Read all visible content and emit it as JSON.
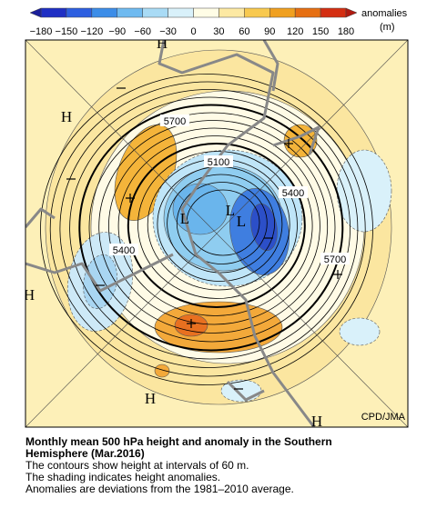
{
  "colorbar": {
    "ticks": [
      "−180",
      "−150",
      "−120",
      "−90",
      "−60",
      "−30",
      "0",
      "30",
      "60",
      "90",
      "120",
      "150",
      "180"
    ],
    "title": "anomalies",
    "unit": "(m)"
  },
  "map": {
    "highs": [
      "H",
      "H",
      "H",
      "H",
      "H"
    ],
    "lows": [
      "L",
      "L",
      "L"
    ],
    "contour_labels": [
      "5700",
      "5100",
      "5400",
      "5400",
      "5700"
    ],
    "credit": "CPD/JMA"
  },
  "caption": {
    "title_lines": [
      "Monthly mean 500 hPa height and anomaly in the Southern",
      "Hemisphere (Mar.2016)"
    ],
    "notes": [
      "The contours show height at intervals of 60 m.",
      "The shading indicates height anomalies.",
      "Anomalies are deviations from the 1981–2010 average."
    ]
  }
}
